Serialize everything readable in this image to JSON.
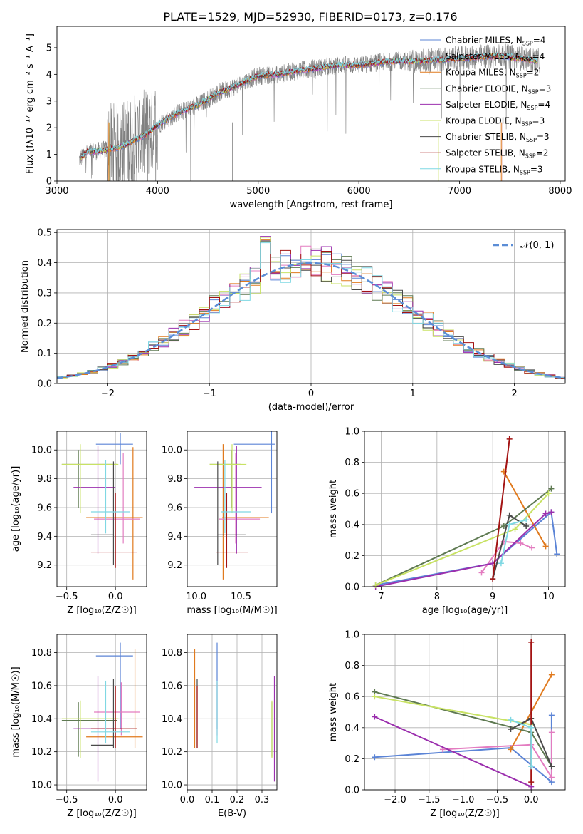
{
  "figure_title": "PLATE=1529, MJD=52930, FIBERID=0173, z=0.176",
  "colors": {
    "Chabrier MILES": "#5b84d6",
    "Salpeter MILES": "#e37cc0",
    "Kroupa MILES": "#e07a1e",
    "Chabrier ELODIE": "#5f7a52",
    "Salpeter ELODIE": "#9b2fae",
    "Kroupa ELODIE": "#c8e264",
    "Chabrier STELIB": "#4a4a4a",
    "Salpeter STELIB": "#a31313",
    "Kroupa STELIB": "#7fd8e3",
    "data": "#808080",
    "normal": "#5b8dd6"
  },
  "chart_data": [
    {
      "id": "spectrum",
      "type": "line",
      "title": "PLATE=1529, MJD=52930, FIBERID=0173, z=0.176",
      "xlabel": "wavelength [Angstrom, rest frame]",
      "ylabel": "Flux [f",
      "ylabel_full": "Flux [fλ10⁻¹⁷ erg cm⁻² s⁻¹ A⁻¹]",
      "xlim": [
        3000,
        8050
      ],
      "ylim": [
        0,
        5.8
      ],
      "xticks": [
        3000,
        4000,
        5000,
        6000,
        7000,
        8000
      ],
      "yticks": [
        0,
        1,
        2,
        3,
        4,
        5
      ],
      "x_range_data": [
        3220,
        7800
      ],
      "continuum": [
        [
          3220,
          0.8
        ],
        [
          3300,
          1.1
        ],
        [
          3400,
          1.12
        ],
        [
          3500,
          1.18
        ],
        [
          3600,
          1.25
        ],
        [
          3700,
          1.4
        ],
        [
          3800,
          1.6
        ],
        [
          3900,
          1.78
        ],
        [
          4000,
          2.1
        ],
        [
          4200,
          2.55
        ],
        [
          4400,
          2.85
        ],
        [
          4600,
          3.3
        ],
        [
          4800,
          3.6
        ],
        [
          5000,
          3.95
        ],
        [
          5200,
          4.0
        ],
        [
          5400,
          4.15
        ],
        [
          5600,
          4.25
        ],
        [
          5800,
          4.35
        ],
        [
          6000,
          4.35
        ],
        [
          6200,
          4.45
        ],
        [
          6400,
          4.5
        ],
        [
          6600,
          4.5
        ],
        [
          6800,
          4.55
        ],
        [
          7000,
          4.6
        ],
        [
          7200,
          4.65
        ],
        [
          7400,
          4.7
        ],
        [
          7600,
          4.6
        ],
        [
          7800,
          4.5
        ]
      ],
      "legend": [
        "Chabrier MILES, N_SSP=4",
        "Salpeter MILES, N_SSP=4",
        "Kroupa MILES, N_SSP=2",
        "Chabrier ELODIE, N_SSP=3",
        "Salpeter ELODIE, N_SSP=4",
        "Kroupa ELODIE, N_SSP=3",
        "Chabrier STELIB, N_SSP=3",
        "Salpeter STELIB, N_SSP=2",
        "Kroupa STELIB, N_SSP=3"
      ],
      "legend_position": "right",
      "grid": false
    },
    {
      "id": "residuals",
      "type": "line",
      "xlabel": "(data-model)/error",
      "ylabel": "Normed distribution",
      "xlim": [
        -2.5,
        2.5
      ],
      "ylim": [
        0,
        0.51
      ],
      "xticks": [
        -2,
        -1,
        0,
        1,
        2
      ],
      "yticks": [
        0.0,
        0.1,
        0.2,
        0.3,
        0.4,
        0.5
      ],
      "legend": [
        "𝒩(0, 1)"
      ],
      "legend_position": "top-right",
      "grid": true,
      "bin_width": 0.1
    },
    {
      "id": "z-age",
      "type": "scatter",
      "xlabel": "Z [log₁₀(Z/Z☉)]",
      "ylabel": "age  [log₁₀(age/yr)]",
      "xlim": [
        -0.6,
        0.32
      ],
      "ylim": [
        9.05,
        10.13
      ],
      "xticks": [
        -0.5,
        0.0
      ],
      "yticks": [
        9.2,
        9.4,
        9.6,
        9.8,
        10.0
      ],
      "grid": true,
      "points": [
        {
          "model": "Chabrier MILES",
          "x": 0.05,
          "y": 10.04,
          "xlo": -0.2,
          "xhi": 0.18,
          "ylo": 9.9,
          "yhi": 10.12
        },
        {
          "model": "Kroupa MILES",
          "x": 0.18,
          "y": 9.53,
          "xlo": -0.3,
          "xhi": 0.28,
          "ylo": 9.1,
          "yhi": 10.02
        },
        {
          "model": "Salpeter MILES",
          "x": 0.08,
          "y": 9.52,
          "xlo": -0.22,
          "xhi": 0.25,
          "ylo": 9.35,
          "yhi": 9.98
        },
        {
          "model": "Chabrier ELODIE",
          "x": -0.38,
          "y": 9.9,
          "xlo": -0.55,
          "xhi": 0.02,
          "ylo": 9.6,
          "yhi": 10.0
        },
        {
          "model": "Salpeter ELODIE",
          "x": -0.18,
          "y": 9.74,
          "xlo": -0.43,
          "xhi": 0.0,
          "ylo": 9.28,
          "yhi": 10.03
        },
        {
          "model": "Kroupa ELODIE",
          "x": -0.36,
          "y": 9.9,
          "xlo": -0.55,
          "xhi": 0.03,
          "ylo": 9.56,
          "yhi": 10.04
        },
        {
          "model": "Chabrier STELIB",
          "x": -0.02,
          "y": 9.41,
          "xlo": -0.25,
          "xhi": -0.02,
          "ylo": 9.2,
          "yhi": 9.92
        },
        {
          "model": "Salpeter STELIB",
          "x": 0.0,
          "y": 9.29,
          "xlo": -0.25,
          "xhi": 0.22,
          "ylo": 9.18,
          "yhi": 9.7
        },
        {
          "model": "Kroupa STELIB",
          "x": -0.1,
          "y": 9.57,
          "xlo": -0.25,
          "xhi": 0.15,
          "ylo": 9.42,
          "yhi": 9.93
        }
      ]
    },
    {
      "id": "mass-age",
      "type": "scatter",
      "xlabel": "mass [log₁₀(M/M☉)]",
      "ylabel": "",
      "xlim": [
        9.9,
        10.9
      ],
      "ylim": [
        9.05,
        10.13
      ],
      "xticks": [
        10.0,
        10.5
      ],
      "yticks": [
        9.2,
        9.4,
        9.6,
        9.8,
        10.0
      ],
      "grid": true,
      "points": [
        {
          "model": "Chabrier MILES",
          "x": 10.84,
          "y": 10.04,
          "xlo": 10.42,
          "xhi": 10.88,
          "ylo": 9.56,
          "yhi": 10.13
        },
        {
          "model": "Kroupa MILES",
          "x": 10.3,
          "y": 9.53,
          "xlo": 10.29,
          "xhi": 10.81,
          "ylo": 9.1,
          "yhi": 10.04
        },
        {
          "model": "Salpeter MILES",
          "x": 10.44,
          "y": 9.52,
          "xlo": 10.25,
          "xhi": 10.71,
          "ylo": 9.35,
          "yhi": 9.98
        },
        {
          "model": "Chabrier ELODIE",
          "x": 10.39,
          "y": 9.9,
          "xlo": 10.15,
          "xhi": 10.5,
          "ylo": 9.6,
          "yhi": 10.0
        },
        {
          "model": "Salpeter ELODIE",
          "x": 10.45,
          "y": 9.74,
          "xlo": 9.98,
          "xhi": 10.73,
          "ylo": 9.28,
          "yhi": 10.03
        },
        {
          "model": "Kroupa ELODIE",
          "x": 10.4,
          "y": 9.9,
          "xlo": 10.15,
          "xhi": 10.56,
          "ylo": 9.56,
          "yhi": 10.04
        },
        {
          "model": "Chabrier STELIB",
          "x": 10.24,
          "y": 9.41,
          "xlo": 10.24,
          "xhi": 10.55,
          "ylo": 9.2,
          "yhi": 9.92
        },
        {
          "model": "Salpeter STELIB",
          "x": 10.34,
          "y": 9.29,
          "xlo": 10.22,
          "xhi": 10.58,
          "ylo": 9.18,
          "yhi": 9.7
        },
        {
          "model": "Kroupa STELIB",
          "x": 10.32,
          "y": 9.57,
          "xlo": 10.28,
          "xhi": 10.61,
          "ylo": 9.42,
          "yhi": 9.93
        }
      ]
    },
    {
      "id": "age-massweight",
      "type": "line",
      "xlabel": "age  [log₁₀(age/yr)]",
      "ylabel": "mass weight",
      "xlim": [
        6.7,
        10.3
      ],
      "ylim": [
        0,
        1.0
      ],
      "xticks": [
        7,
        8,
        9,
        10
      ],
      "yticks": [
        0.0,
        0.2,
        0.4,
        0.6,
        0.8,
        1.0
      ],
      "grid": true,
      "series": [
        {
          "model": "Chabrier MILES",
          "points": [
            [
              6.9,
              0.01
            ],
            [
              9.0,
              0.15
            ],
            [
              10.05,
              0.48
            ],
            [
              10.15,
              0.21
            ]
          ]
        },
        {
          "model": "Salpeter MILES",
          "points": [
            [
              8.8,
              0.09
            ],
            [
              9.2,
              0.29
            ],
            [
              9.5,
              0.28
            ],
            [
              9.7,
              0.25
            ]
          ]
        },
        {
          "model": "Kroupa MILES",
          "points": [
            [
              9.2,
              0.74
            ],
            [
              9.95,
              0.26
            ]
          ]
        },
        {
          "model": "Chabrier ELODIE",
          "points": [
            [
              6.9,
              0.01
            ],
            [
              9.2,
              0.39
            ],
            [
              10.05,
              0.63
            ]
          ]
        },
        {
          "model": "Salpeter ELODIE",
          "points": [
            [
              6.9,
              0.0
            ],
            [
              9.0,
              0.15
            ],
            [
              9.95,
              0.47
            ],
            [
              10.05,
              0.48
            ]
          ]
        },
        {
          "model": "Kroupa ELODIE",
          "points": [
            [
              6.9,
              0.01
            ],
            [
              9.4,
              0.37
            ],
            [
              10.0,
              0.6
            ]
          ]
        },
        {
          "model": "Chabrier STELIB",
          "points": [
            [
              9.0,
              0.05
            ],
            [
              9.3,
              0.46
            ],
            [
              9.6,
              0.39
            ]
          ]
        },
        {
          "model": "Salpeter STELIB",
          "points": [
            [
              9.0,
              0.05
            ],
            [
              9.3,
              0.95
            ]
          ]
        },
        {
          "model": "Kroupa STELIB",
          "points": [
            [
              9.15,
              0.15
            ],
            [
              9.3,
              0.4
            ],
            [
              9.6,
              0.43
            ]
          ]
        }
      ]
    },
    {
      "id": "z-mass",
      "type": "scatter",
      "xlabel": "Z [log₁₀(Z/Z☉)]",
      "ylabel": "mass [log₁₀(M/M☉)]",
      "xlim": [
        -0.6,
        0.32
      ],
      "ylim": [
        9.97,
        10.91
      ],
      "xticks": [
        -0.5,
        0.0
      ],
      "yticks": [
        10.0,
        10.2,
        10.4,
        10.6,
        10.8
      ],
      "grid": true,
      "points": [
        {
          "model": "Chabrier MILES",
          "x": 0.05,
          "y": 10.78,
          "xlo": -0.2,
          "xhi": 0.18,
          "ylo": 10.34,
          "yhi": 10.86
        },
        {
          "model": "Kroupa MILES",
          "x": 0.2,
          "y": 10.29,
          "xlo": -0.3,
          "xhi": 0.28,
          "ylo": 10.22,
          "yhi": 10.82
        },
        {
          "model": "Salpeter MILES",
          "x": 0.06,
          "y": 10.44,
          "xlo": -0.22,
          "xhi": 0.25,
          "ylo": 10.3,
          "yhi": 10.62
        },
        {
          "model": "Chabrier ELODIE",
          "x": -0.38,
          "y": 10.39,
          "xlo": -0.55,
          "xhi": 0.02,
          "ylo": 10.17,
          "yhi": 10.5
        },
        {
          "model": "Salpeter ELODIE",
          "x": -0.18,
          "y": 10.34,
          "xlo": -0.43,
          "xhi": 0.0,
          "ylo": 10.02,
          "yhi": 10.66
        },
        {
          "model": "Kroupa ELODIE",
          "x": -0.36,
          "y": 10.4,
          "xlo": -0.55,
          "xhi": 0.03,
          "ylo": 10.16,
          "yhi": 10.51
        },
        {
          "model": "Chabrier STELIB",
          "x": -0.02,
          "y": 10.24,
          "xlo": -0.25,
          "xhi": -0.02,
          "ylo": 10.22,
          "yhi": 10.64
        },
        {
          "model": "Salpeter STELIB",
          "x": 0.0,
          "y": 10.34,
          "xlo": -0.25,
          "xhi": 0.22,
          "ylo": 10.22,
          "yhi": 10.6
        },
        {
          "model": "Kroupa STELIB",
          "x": -0.1,
          "y": 10.32,
          "xlo": -0.25,
          "xhi": 0.15,
          "ylo": 10.25,
          "yhi": 10.63
        }
      ]
    },
    {
      "id": "ebv-mass",
      "type": "scatter",
      "xlabel": "E(B-V)",
      "ylabel": "",
      "xlim": [
        0.0,
        0.36
      ],
      "ylim": [
        9.97,
        10.91
      ],
      "xticks": [
        0.0,
        0.1,
        0.2,
        0.3
      ],
      "yticks": [
        10.0,
        10.2,
        10.4,
        10.6,
        10.8
      ],
      "grid": true,
      "points": [
        {
          "model": "Chabrier MILES",
          "x": 0.12,
          "y": 10.78,
          "ylo": 10.34,
          "yhi": 10.86
        },
        {
          "model": "Kroupa MILES",
          "x": 0.03,
          "y": 10.29,
          "ylo": 10.22,
          "yhi": 10.82
        },
        {
          "model": "Salpeter MILES",
          "x": 0.12,
          "y": 10.44,
          "ylo": 10.3,
          "yhi": 10.62
        },
        {
          "model": "Chabrier ELODIE",
          "x": 0.34,
          "y": 10.39,
          "ylo": 10.17,
          "yhi": 10.5
        },
        {
          "model": "Salpeter ELODIE",
          "x": 0.35,
          "y": 10.34,
          "ylo": 10.02,
          "yhi": 10.66
        },
        {
          "model": "Kroupa ELODIE",
          "x": 0.34,
          "y": 10.4,
          "ylo": 10.16,
          "yhi": 10.51
        },
        {
          "model": "Chabrier STELIB",
          "x": 0.04,
          "y": 10.24,
          "ylo": 10.22,
          "yhi": 10.64
        },
        {
          "model": "Salpeter STELIB",
          "x": 0.04,
          "y": 10.34,
          "ylo": 10.22,
          "yhi": 10.6
        },
        {
          "model": "Kroupa STELIB",
          "x": 0.12,
          "y": 10.32,
          "ylo": 10.25,
          "yhi": 10.63
        }
      ]
    },
    {
      "id": "z-massweight",
      "type": "line",
      "xlabel": "Z [log₁₀(Z/Z☉)]",
      "ylabel": "mass weight",
      "xlim": [
        -2.45,
        0.5
      ],
      "ylim": [
        0,
        1.0
      ],
      "xticks": [
        -2.0,
        -1.5,
        -1.0,
        -0.5,
        0.0
      ],
      "yticks": [
        0.0,
        0.2,
        0.4,
        0.6,
        0.8,
        1.0
      ],
      "grid": true,
      "series": [
        {
          "model": "Chabrier MILES",
          "points": [
            [
              -2.3,
              0.21
            ],
            [
              -0.3,
              0.27
            ],
            [
              0.3,
              0.05
            ],
            [
              0.3,
              0.48
            ]
          ]
        },
        {
          "model": "Salpeter MILES",
          "points": [
            [
              -1.3,
              0.26
            ],
            [
              0.0,
              0.29
            ],
            [
              0.3,
              0.08
            ],
            [
              0.3,
              0.37
            ]
          ]
        },
        {
          "model": "Kroupa MILES",
          "points": [
            [
              -0.3,
              0.26
            ],
            [
              0.3,
              0.74
            ]
          ]
        },
        {
          "model": "Chabrier ELODIE",
          "points": [
            [
              -2.3,
              0.63
            ],
            [
              0.0,
              0.37
            ],
            [
              0.3,
              0.15
            ]
          ]
        },
        {
          "model": "Salpeter ELODIE",
          "points": [
            [
              -2.3,
              0.47
            ],
            [
              0.0,
              0.02
            ]
          ]
        },
        {
          "model": "Kroupa ELODIE",
          "points": [
            [
              -2.3,
              0.6
            ],
            [
              0.0,
              0.42
            ]
          ]
        },
        {
          "model": "Chabrier STELIB",
          "points": [
            [
              -0.3,
              0.39
            ],
            [
              0.0,
              0.46
            ],
            [
              0.3,
              0.15
            ]
          ]
        },
        {
          "model": "Salpeter STELIB",
          "points": [
            [
              0.0,
              0.05
            ],
            [
              0.0,
              0.95
            ]
          ]
        },
        {
          "model": "Kroupa STELIB",
          "points": [
            [
              -0.3,
              0.45
            ],
            [
              0.0,
              0.4
            ],
            [
              0.0,
              0.15
            ]
          ]
        }
      ]
    }
  ]
}
